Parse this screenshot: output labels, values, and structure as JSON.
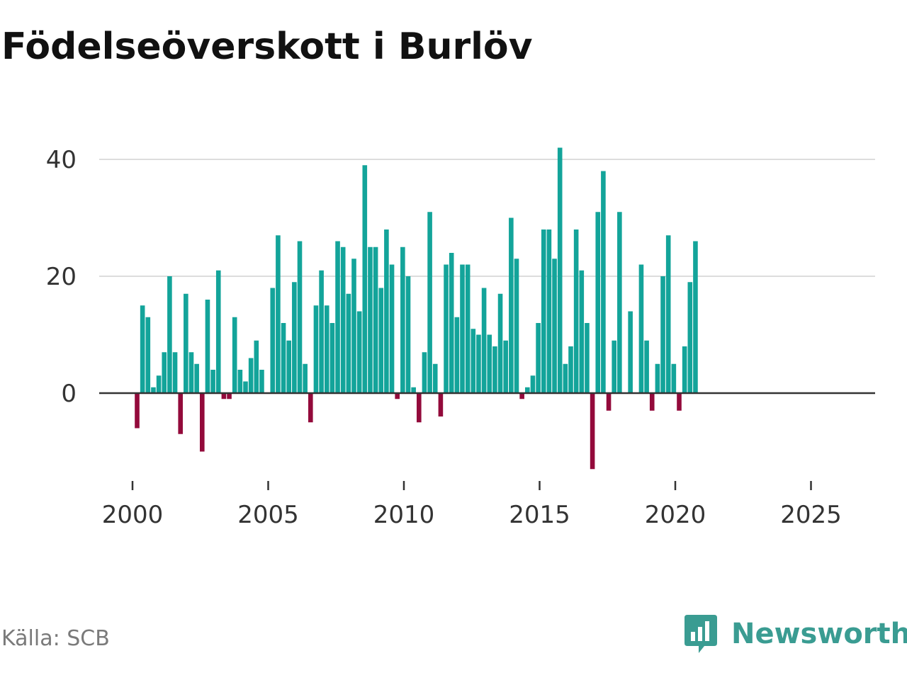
{
  "title": "Födelseöverskott i Burlöv",
  "source": "Källa: SCB",
  "brand": {
    "name": "Newsworthy",
    "logo_icon": "bar-chart-speech-bubble-icon"
  },
  "colors": {
    "positive": "#13a49a",
    "negative": "#930a3b",
    "grid": "#dddddd",
    "zero": "#333333",
    "brand": "#3a9c92"
  },
  "chart_data": {
    "type": "bar",
    "title": "Födelseöverskott i Burlöv",
    "xlabel": "",
    "ylabel": "",
    "frequency": "quarterly",
    "start": "2000-Q1",
    "x_ticks": [
      "2000",
      "2005",
      "2010",
      "2015",
      "2020",
      "2025"
    ],
    "y_ticks": [
      "0",
      "20",
      "40"
    ],
    "ylim": [
      -15,
      43
    ],
    "grid": true,
    "values": [
      -6,
      15,
      13,
      1,
      3,
      7,
      20,
      7,
      -7,
      17,
      7,
      5,
      -10,
      16,
      4,
      21,
      -1,
      -1,
      13,
      4,
      2,
      6,
      9,
      4,
      0,
      18,
      27,
      12,
      9,
      19,
      26,
      5,
      -5,
      15,
      21,
      15,
      12,
      26,
      25,
      17,
      23,
      14,
      39,
      25,
      25,
      18,
      28,
      22,
      -1,
      25,
      20,
      1,
      -5,
      7,
      31,
      5,
      -4,
      22,
      24,
      13,
      22,
      22,
      11,
      10,
      18,
      10,
      8,
      17,
      9,
      30,
      23,
      -1,
      1,
      3,
      12,
      28,
      28,
      23,
      42,
      5,
      8,
      28,
      21,
      12,
      -13,
      31,
      38,
      -3,
      9,
      31,
      0,
      14,
      0,
      22,
      9,
      -3,
      5,
      20,
      27,
      5,
      -3,
      8,
      19,
      26
    ]
  }
}
